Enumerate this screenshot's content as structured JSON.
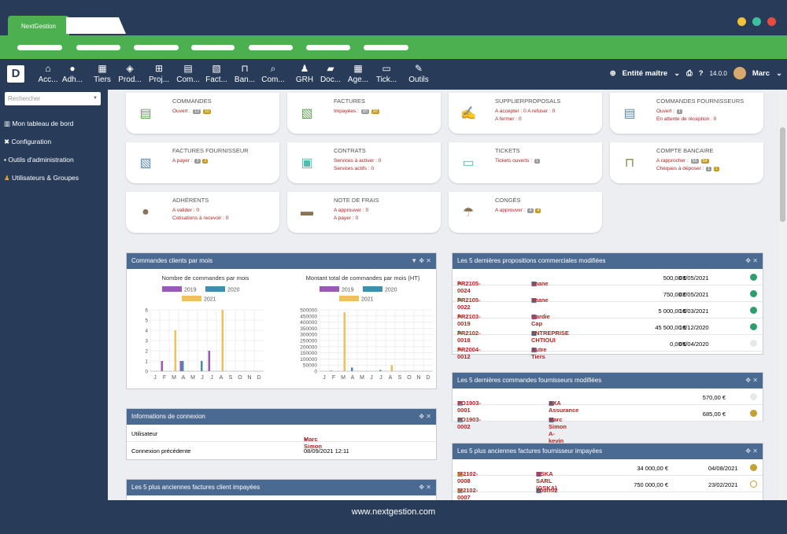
{
  "browser": {
    "tab_title": "NextGestion"
  },
  "menu": {
    "items": [
      {
        "label": "Acc...",
        "icon": "home-icon"
      },
      {
        "label": "Adh...",
        "icon": "user-icon"
      },
      {
        "label": "Tiers",
        "icon": "building-icon"
      },
      {
        "label": "Prod...",
        "icon": "cube-icon"
      },
      {
        "label": "Proj...",
        "icon": "sitemap-icon"
      },
      {
        "label": "Com...",
        "icon": "briefcase-icon"
      },
      {
        "label": "Fact...",
        "icon": "file-invoice-icon"
      },
      {
        "label": "Ban...",
        "icon": "bank-icon"
      },
      {
        "label": "Com...",
        "icon": "search-dollar-icon"
      },
      {
        "label": "GRH",
        "icon": "user-tie-icon"
      },
      {
        "label": "Doc...",
        "icon": "folder-icon"
      },
      {
        "label": "Age...",
        "icon": "calendar-icon"
      },
      {
        "label": "Tick...",
        "icon": "ticket-icon"
      },
      {
        "label": "Outils",
        "icon": "wrench-icon"
      }
    ],
    "entity": "Entité maître",
    "version": "14.0.0",
    "user": "Marc"
  },
  "sidebar": {
    "search_placeholder": "Rechercher",
    "items": [
      {
        "label": "Mon tableau de bord",
        "icon": "chart-icon"
      },
      {
        "label": "Configuration",
        "icon": "tools-icon"
      },
      {
        "label": "Outils d'administration",
        "icon": "box-icon"
      },
      {
        "label": "Utilisateurs & Groupes",
        "icon": "users-icon"
      }
    ]
  },
  "cards": [
    {
      "title": "COMMANDES",
      "lines": [
        "Ouvert :"
      ],
      "badges": [
        "12",
        "10"
      ],
      "icon": "file-icon",
      "color": "#65a35a"
    },
    {
      "title": "FACTURES",
      "lines": [
        "Impayées :"
      ],
      "badges": [
        "20",
        "30"
      ],
      "icon": "invoice-icon",
      "color": "#65a35a"
    },
    {
      "title": "SUPPLIERPROPOSALS",
      "lines": [
        "A accepter : 0  A refuser : 0",
        "A fermer : 0"
      ],
      "badges": [],
      "icon": "signature-icon",
      "color": "#5b8bb5"
    },
    {
      "title": "COMMANDES FOURNISSEURS",
      "lines": [
        "Ouvert :",
        "En attente de réception : 0"
      ],
      "badges": [
        "1"
      ],
      "icon": "file-icon",
      "color": "#5b8bb5"
    },
    {
      "title": "FACTURES FOURNISSEUR",
      "lines": [
        "A payer :"
      ],
      "badges": [
        "3",
        "2"
      ],
      "icon": "invoice-icon",
      "color": "#5b8bb5"
    },
    {
      "title": "CONTRATS",
      "lines": [
        "Services à activer : 0",
        "Services actifs : 0"
      ],
      "badges": [],
      "icon": "suitcase-icon",
      "color": "#4bbfa9"
    },
    {
      "title": "TICKETS",
      "lines": [
        "Tickets ouverts :"
      ],
      "badges": [
        "1"
      ],
      "icon": "ticket-icon",
      "color": "#4bbfa9"
    },
    {
      "title": "COMPTE BANCAIRE",
      "lines": [
        "A rapprocher :",
        "Chèques à déposer :"
      ],
      "badges": [
        "56",
        "54",
        "1",
        "1"
      ],
      "icon": "bank-icon",
      "color": "#8b8a4a"
    },
    {
      "title": "ADHÉRENTS",
      "lines": [
        "A valider : 0",
        "Cotisations à recevoir : 0"
      ],
      "badges": [],
      "icon": "member-icon",
      "color": "#8a7255"
    },
    {
      "title": "NOTE DE FRAIS",
      "lines": [
        "A approuver : 0",
        "A payer : 0"
      ],
      "badges": [],
      "icon": "wallet-icon",
      "color": "#8a7255"
    },
    {
      "title": "CONGÉS",
      "lines": [
        "A approuver :"
      ],
      "badges": [
        "4",
        "4"
      ],
      "icon": "beach-icon",
      "color": "#8a7255"
    }
  ],
  "panels": {
    "commandes_mois": "Commandes clients par mois",
    "connexion": "Informations de connexion",
    "factures_client": "Les 5 plus anciennes factures client impayées",
    "propositions": "Les 5 dernières propositions commerciales modifiées",
    "commandes_fourn": "Les 5 dernières commandes fournisseurs modifiées",
    "factures_fourn": "Les 5 plus anciennes factures fournisseur impayées"
  },
  "connexion": {
    "rows": [
      {
        "label": "Utilisateur",
        "value": "Marc Simon"
      },
      {
        "label": "Connexion précédente",
        "value": "08/09/2021 12:11"
      }
    ]
  },
  "propositions": [
    {
      "ref": "PR2105-0024",
      "tiers": "Imane",
      "amount": "500,00 €",
      "date": "03/05/2021",
      "status": "#2e9e6b"
    },
    {
      "ref": "PR2105-0022",
      "tiers": "Imane",
      "amount": "750,00 €",
      "date": "02/05/2021",
      "status": "#2e9e6b"
    },
    {
      "ref": "PR2103-0019",
      "tiers": "Gardie Cap",
      "amount": "5 000,00 €",
      "date": "10/03/2021",
      "status": "#2e9e6b"
    },
    {
      "ref": "PR2102-0018",
      "tiers": "ENTREPRISE CHTIOUI",
      "amount": "45 500,00 €",
      "date": "10/12/2020",
      "status": "#2e9e6b"
    },
    {
      "ref": "PR2004-0012",
      "tiers": "Autre Tiers",
      "amount": "0,00 €",
      "date": "05/04/2020",
      "status": "#e8e8e8"
    }
  ],
  "commandes_fourn": [
    {
      "ref": "PO1903-0001",
      "tiers": "AXA Assurance",
      "amount": "570,00 €",
      "status": "#e8e8e8"
    },
    {
      "ref": "PO1903-0002",
      "tiers": "Marc Simon A-kevin",
      "amount": "685,00 €",
      "status": "#c5a032"
    }
  ],
  "factures_fourn": [
    {
      "ref": "SI2102-0008",
      "tiers": "GSKA SARL (GSKA)",
      "amount": "34 000,00 €",
      "date": "04/08/2021",
      "status": "#c5a032"
    },
    {
      "ref": "SI2102-0007",
      "tiers": "Fourni2",
      "amount": "750 000,00 €",
      "date": "23/02/2021",
      "status": "#ffffff"
    }
  ],
  "footer": "www.nextgestion.com",
  "chart_data": [
    {
      "type": "bar",
      "title": "Nombre de commandes par mois",
      "categories": [
        "J",
        "F",
        "M",
        "A",
        "M",
        "J",
        "J",
        "A",
        "S",
        "O",
        "N",
        "D"
      ],
      "series": [
        {
          "name": "2019",
          "color": "#9b59b6",
          "values": [
            0,
            1,
            0,
            1,
            0,
            0,
            2,
            0,
            0,
            0,
            0,
            0
          ]
        },
        {
          "name": "2020",
          "color": "#3e8eb0",
          "values": [
            0,
            0,
            0,
            1,
            0,
            1,
            0,
            0,
            0,
            0,
            0,
            0
          ]
        },
        {
          "name": "2021",
          "color": "#f0c05a",
          "values": [
            0,
            0,
            4,
            0,
            0,
            0,
            0,
            6,
            0,
            0,
            0,
            0
          ]
        }
      ],
      "ylim": [
        0,
        6
      ],
      "yticks": [
        "0",
        "1",
        "2",
        "3",
        "4",
        "5",
        "6"
      ]
    },
    {
      "type": "bar",
      "title": "Montant total de commandes par mois (HT)",
      "categories": [
        "J",
        "F",
        "M",
        "A",
        "M",
        "J",
        "J",
        "A",
        "S",
        "O",
        "N",
        "D"
      ],
      "series": [
        {
          "name": "2019",
          "color": "#9b59b6",
          "values": [
            0,
            5000,
            0,
            0,
            0,
            0,
            0,
            0,
            0,
            0,
            0,
            0
          ]
        },
        {
          "name": "2020",
          "color": "#3e8eb0",
          "values": [
            0,
            0,
            0,
            30000,
            0,
            0,
            10000,
            0,
            0,
            0,
            0,
            0
          ]
        },
        {
          "name": "2021",
          "color": "#f0c05a",
          "values": [
            0,
            0,
            480000,
            0,
            0,
            0,
            0,
            50000,
            0,
            0,
            0,
            0
          ]
        }
      ],
      "ylim": [
        0,
        500000
      ],
      "yticks": [
        "0",
        "50000",
        "100000",
        "150000",
        "200000",
        "250000",
        "300000",
        "350000",
        "400000",
        "450000",
        "500000"
      ]
    }
  ]
}
